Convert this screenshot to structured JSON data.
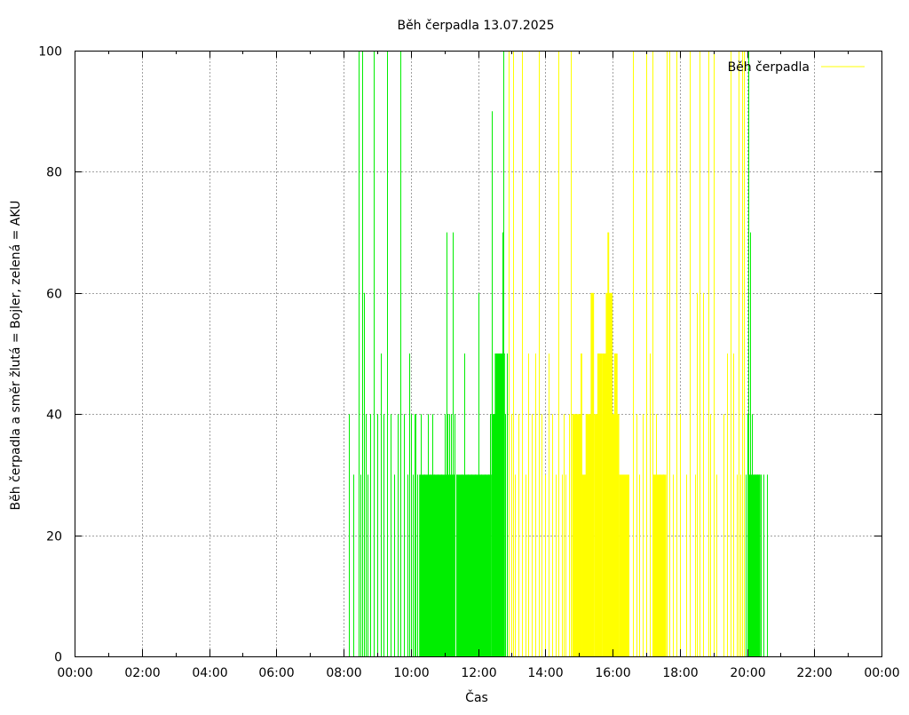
{
  "chart_data": {
    "type": "bar",
    "title": "Běh čerpadla 13.07.2025",
    "xlabel": "Čas",
    "ylabel": "Běh čerpadla a směr žlutá = Bojler, zelená = AKU",
    "xlim_hours": [
      0,
      24
    ],
    "ylim": [
      0,
      100
    ],
    "x_ticks": [
      "00:00",
      "02:00",
      "04:00",
      "06:00",
      "08:00",
      "10:00",
      "12:00",
      "14:00",
      "16:00",
      "18:00",
      "20:00",
      "22:00",
      "00:00"
    ],
    "y_ticks": [
      "0",
      "20",
      "40",
      "60",
      "80",
      "100"
    ],
    "grid": true,
    "legend": {
      "position": "top-right",
      "entries": [
        {
          "label": "Běh čerpadla",
          "color": "#ffff00"
        }
      ]
    },
    "colors": {
      "green": "#00ee00",
      "yellow": "#ffff00",
      "grid": "#a0a0a0"
    },
    "series": [
      {
        "color": "green",
        "x_unit": "hours",
        "bars": [
          [
            8.15,
            40
          ],
          [
            8.3,
            30
          ],
          [
            8.45,
            100
          ],
          [
            8.5,
            30
          ],
          [
            8.55,
            100
          ],
          [
            8.6,
            60
          ],
          [
            8.65,
            40
          ],
          [
            8.7,
            30
          ],
          [
            8.8,
            40
          ],
          [
            8.9,
            100
          ],
          [
            9.0,
            40
          ],
          [
            9.1,
            50
          ],
          [
            9.2,
            40
          ],
          [
            9.3,
            100
          ],
          [
            9.4,
            40
          ],
          [
            9.5,
            30
          ],
          [
            9.6,
            40
          ],
          [
            9.7,
            100
          ],
          [
            9.8,
            40
          ],
          [
            9.9,
            30
          ],
          [
            9.95,
            50
          ],
          [
            10.0,
            40
          ],
          [
            10.05,
            30
          ],
          [
            10.1,
            40
          ],
          [
            10.15,
            40
          ],
          [
            10.2,
            30
          ],
          [
            10.3,
            40
          ],
          [
            10.4,
            30
          ],
          [
            10.5,
            40
          ],
          [
            10.6,
            30
          ],
          [
            10.65,
            40
          ],
          [
            10.7,
            30
          ],
          [
            10.8,
            30
          ],
          [
            10.9,
            30
          ],
          [
            11.0,
            40
          ],
          [
            11.05,
            70
          ],
          [
            11.1,
            40
          ],
          [
            11.15,
            40
          ],
          [
            11.2,
            40
          ],
          [
            11.25,
            70
          ],
          [
            11.3,
            40
          ],
          [
            11.35,
            30
          ],
          [
            11.5,
            30
          ],
          [
            11.6,
            50
          ],
          [
            11.7,
            30
          ],
          [
            11.8,
            30
          ],
          [
            11.9,
            30
          ],
          [
            12.0,
            60
          ],
          [
            12.1,
            30
          ],
          [
            12.2,
            30
          ],
          [
            12.3,
            30
          ],
          [
            12.35,
            40
          ],
          [
            12.4,
            90
          ],
          [
            12.45,
            40
          ],
          [
            12.5,
            40
          ],
          [
            12.55,
            40
          ],
          [
            12.6,
            50
          ],
          [
            12.65,
            40
          ],
          [
            12.7,
            50
          ],
          [
            12.72,
            70
          ],
          [
            12.75,
            100
          ],
          [
            12.8,
            40
          ],
          [
            12.85,
            50
          ],
          [
            19.95,
            30
          ],
          [
            20.0,
            40
          ],
          [
            20.05,
            100
          ],
          [
            20.1,
            70
          ],
          [
            20.15,
            40
          ],
          [
            20.2,
            30
          ],
          [
            20.25,
            30
          ],
          [
            20.3,
            30
          ],
          [
            20.35,
            30
          ],
          [
            20.4,
            30
          ],
          [
            20.5,
            30
          ],
          [
            20.6,
            30
          ]
        ],
        "blocks": [
          [
            10.25,
            11.3,
            30
          ],
          [
            11.35,
            12.4,
            30
          ],
          [
            12.5,
            12.8,
            50
          ],
          [
            12.4,
            12.5,
            40
          ],
          [
            20.05,
            20.4,
            30
          ]
        ]
      },
      {
        "color": "yellow",
        "x_unit": "hours",
        "bars": [
          [
            12.9,
            100
          ],
          [
            13.0,
            40
          ],
          [
            13.05,
            100
          ],
          [
            13.1,
            30
          ],
          [
            13.2,
            40
          ],
          [
            13.3,
            100
          ],
          [
            13.4,
            30
          ],
          [
            13.5,
            50
          ],
          [
            13.6,
            40
          ],
          [
            13.7,
            50
          ],
          [
            13.8,
            100
          ],
          [
            13.9,
            40
          ],
          [
            14.0,
            30
          ],
          [
            14.1,
            50
          ],
          [
            14.2,
            40
          ],
          [
            14.3,
            30
          ],
          [
            14.4,
            100
          ],
          [
            14.5,
            30
          ],
          [
            14.55,
            40
          ],
          [
            14.6,
            30
          ],
          [
            14.7,
            40
          ],
          [
            14.75,
            100
          ],
          [
            16.6,
            100
          ],
          [
            16.7,
            40
          ],
          [
            16.8,
            30
          ],
          [
            16.9,
            40
          ],
          [
            17.0,
            100
          ],
          [
            17.1,
            50
          ],
          [
            17.2,
            100
          ],
          [
            17.3,
            40
          ],
          [
            17.4,
            30
          ],
          [
            17.5,
            30
          ],
          [
            17.6,
            100
          ],
          [
            17.7,
            100
          ],
          [
            17.8,
            30
          ],
          [
            17.9,
            100
          ],
          [
            18.0,
            40
          ],
          [
            18.2,
            30
          ],
          [
            18.3,
            100
          ],
          [
            18.45,
            30
          ],
          [
            18.5,
            60
          ],
          [
            18.6,
            100
          ],
          [
            18.7,
            60
          ],
          [
            18.85,
            100
          ],
          [
            18.9,
            40
          ],
          [
            19.0,
            100
          ],
          [
            19.1,
            30
          ],
          [
            19.3,
            40
          ],
          [
            19.4,
            50
          ],
          [
            19.5,
            100
          ],
          [
            19.6,
            50
          ],
          [
            19.7,
            30
          ],
          [
            19.75,
            100
          ],
          [
            19.8,
            30
          ],
          [
            19.85,
            100
          ],
          [
            19.9,
            100
          ]
        ],
        "blocks": [
          [
            14.8,
            15.1,
            40
          ],
          [
            15.05,
            15.1,
            50
          ],
          [
            15.1,
            15.4,
            30
          ],
          [
            15.2,
            15.4,
            40
          ],
          [
            15.35,
            15.45,
            60
          ],
          [
            15.45,
            15.7,
            40
          ],
          [
            15.55,
            15.7,
            50
          ],
          [
            15.7,
            16.0,
            50
          ],
          [
            15.8,
            16.0,
            60
          ],
          [
            15.85,
            15.9,
            70
          ],
          [
            16.0,
            16.2,
            40
          ],
          [
            16.05,
            16.15,
            50
          ],
          [
            16.2,
            16.5,
            30
          ],
          [
            17.2,
            17.6,
            30
          ]
        ]
      }
    ]
  }
}
